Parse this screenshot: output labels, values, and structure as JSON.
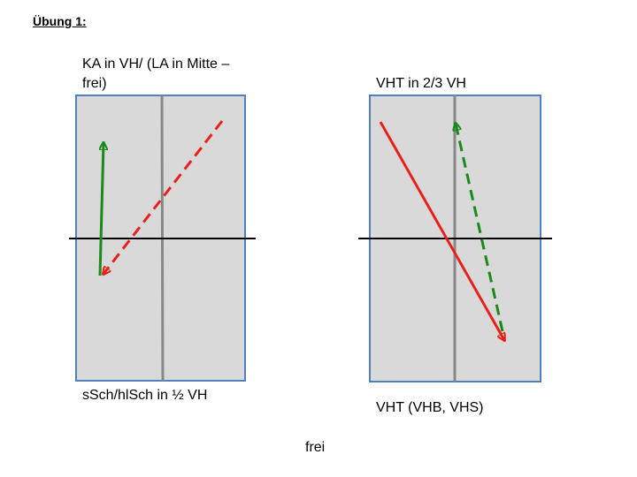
{
  "header": {
    "title": "Übung 1:"
  },
  "panels": [
    {
      "top_label": [
        "KA in VH/ (LA in Mitte –",
        "frei)"
      ],
      "bottom_label": "sSch/hlSch in ½ VH"
    },
    {
      "top_label": [
        "VHT in 2/3 VH"
      ],
      "bottom_label": "VHT (VHB, VHS)"
    }
  ],
  "footer": {
    "text": "frei"
  }
}
